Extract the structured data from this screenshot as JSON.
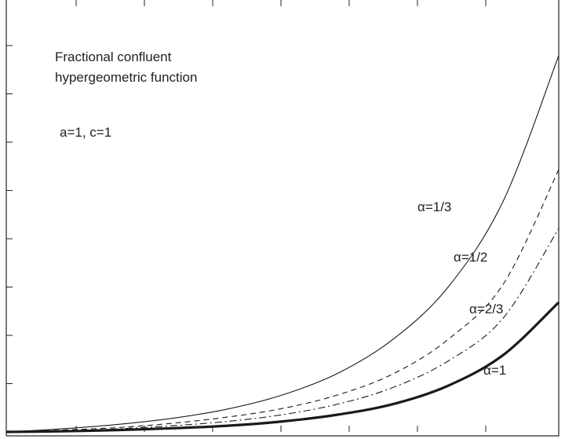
{
  "chart_data": {
    "type": "line",
    "title_lines": [
      "Fractional confluent",
      "hypergeometric function"
    ],
    "parameters_text": "a=1, c=1",
    "xlabel": "",
    "ylabel": "",
    "x": [
      0,
      0.5,
      1,
      1.5,
      2,
      2.5,
      3,
      3.5,
      4,
      4.5,
      5
    ],
    "series": [
      {
        "name": "α=1/3",
        "style": "solid-thin",
        "values": [
          0,
          0.05,
          0.12,
          0.22,
          0.37,
          0.6,
          0.95,
          1.5,
          2.35,
          3.75,
          6.1
        ]
      },
      {
        "name": "α=1/2",
        "style": "dashed",
        "values": [
          0,
          0.03,
          0.07,
          0.14,
          0.24,
          0.38,
          0.6,
          0.94,
          1.5,
          2.4,
          4.25
        ]
      },
      {
        "name": "α=2/3",
        "style": "dash-dot",
        "values": [
          0,
          0.02,
          0.05,
          0.1,
          0.17,
          0.28,
          0.45,
          0.72,
          1.15,
          1.85,
          3.3
        ]
      },
      {
        "name": "α=1",
        "style": "solid-thick",
        "values": [
          0,
          0.01,
          0.03,
          0.06,
          0.1,
          0.17,
          0.28,
          0.45,
          0.75,
          1.25,
          2.1
        ]
      }
    ],
    "xlim": [
      0,
      5
    ],
    "ylim": [
      0,
      7
    ],
    "grid": false,
    "legend": "inline labels"
  }
}
